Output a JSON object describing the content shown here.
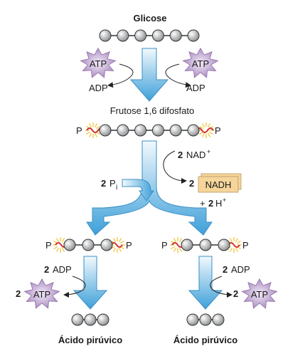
{
  "title": "Glicose",
  "intermediate": "Frutose 1,6 difosfato",
  "product_left": "Ácido pirúvico",
  "product_right": "Ácido pirúvico",
  "atp": "ATP",
  "adp": "ADP",
  "phosphate": "P",
  "coefficient": "2",
  "nad": "NAD",
  "nadh": "NADH",
  "h": "H",
  "plus_sign": "+",
  "pi_subscript": "i",
  "plus_charge": "+",
  "colors": {
    "arrow": "#4aa7dd",
    "arrow_light": "#e6f3fb",
    "bead": "#a9acaf",
    "atp_star": "#a98bbf",
    "nadh_box": "#f6d59b",
    "high_energy_bond": "#d0312d",
    "burst": "#f0c030"
  }
}
